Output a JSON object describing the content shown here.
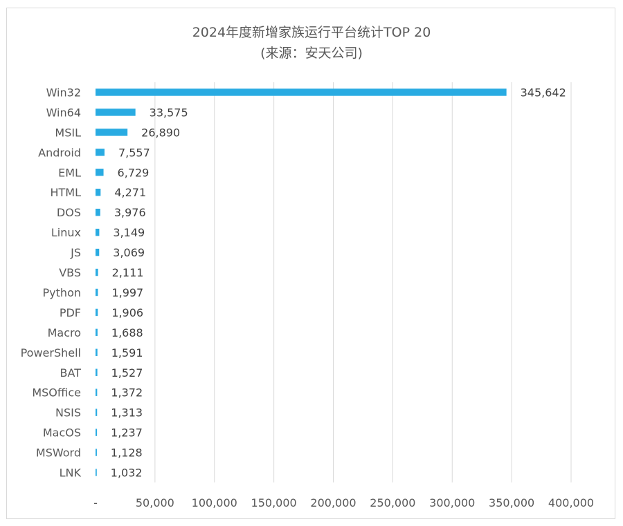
{
  "chart_data": {
    "type": "bar",
    "orientation": "horizontal",
    "title": "2024年度新增家族运行平台统计TOP 20",
    "subtitle": "(来源：安天公司)",
    "categories": [
      "Win32",
      "Win64",
      "MSIL",
      "Android",
      "EML",
      "HTML",
      "DOS",
      "Linux",
      "JS",
      "VBS",
      "Python",
      "PDF",
      "Macro",
      "PowerShell",
      "BAT",
      "MSOffice",
      "NSIS",
      "MacOS",
      "MSWord",
      "LNK"
    ],
    "values": [
      345642,
      33575,
      26890,
      7557,
      6729,
      4271,
      3976,
      3149,
      3069,
      2111,
      1997,
      1906,
      1688,
      1591,
      1527,
      1372,
      1313,
      1237,
      1128,
      1032
    ],
    "value_labels": [
      "345,642",
      "33,575",
      "26,890",
      "7,557",
      "6,729",
      "4,271",
      "3,976",
      "3,149",
      "3,069",
      "2,111",
      "1,997",
      "1,906",
      "1,688",
      "1,591",
      "1,527",
      "1,372",
      "1,313",
      "1,237",
      "1,128",
      "1,032"
    ],
    "xlim": [
      0,
      400000
    ],
    "xticks": [
      0,
      50000,
      100000,
      150000,
      200000,
      250000,
      300000,
      350000,
      400000
    ],
    "xtick_labels": [
      "-",
      "50,000",
      "100,000",
      "150,000",
      "200,000",
      "250,000",
      "300,000",
      "350,000",
      "400,000"
    ],
    "grid": "vertical",
    "bar_color": "#29abe2",
    "grid_color": "#d9d9d9"
  }
}
